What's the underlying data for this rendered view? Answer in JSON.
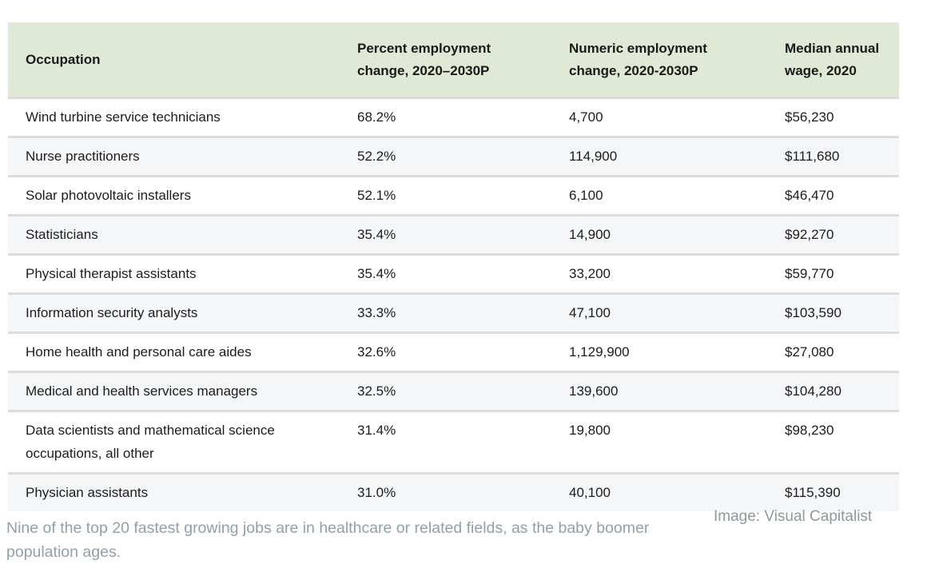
{
  "chart_data": {
    "type": "table",
    "title": "",
    "columns": [
      "Occupation",
      "Percent employment change, 2020–2030P",
      "Numeric employment change, 2020-2030P",
      "Median annual wage, 2020"
    ],
    "rows": [
      [
        "Wind turbine service technicians",
        "68.2%",
        "4,700",
        "$56,230"
      ],
      [
        "Nurse practitioners",
        "52.2%",
        "114,900",
        "$111,680"
      ],
      [
        "Solar photovoltaic installers",
        "52.1%",
        "6,100",
        "$46,470"
      ],
      [
        "Statisticians",
        "35.4%",
        "14,900",
        "$92,270"
      ],
      [
        "Physical therapist assistants",
        "35.4%",
        "33,200",
        "$59,770"
      ],
      [
        "Information security analysts",
        "33.3%",
        "47,100",
        "$103,590"
      ],
      [
        "Home health and personal care aides",
        "32.6%",
        "1,129,900",
        "$27,080"
      ],
      [
        "Medical and health services managers",
        "32.5%",
        "139,600",
        "$104,280"
      ],
      [
        "Data scientists and mathematical science occupations, all other",
        "31.4%",
        "19,800",
        "$98,230"
      ],
      [
        "Physician assistants",
        "31.0%",
        "40,100",
        "$115,390"
      ]
    ]
  },
  "table": {
    "columns": [
      "Occupation",
      "Percent employment change, 2020–2030P",
      "Numeric employment change, 2020-2030P",
      "Median annual wage, 2020"
    ]
  },
  "caption": "Nine of the top 20 fastest growing jobs are in healthcare or related fields, as the baby boomer population ages.",
  "credit": "Image: Visual Capitalist",
  "colors": {
    "header_bg": "#dfe9d5",
    "alt_row_bg": "#f5f6f8",
    "divider": "#dcdcdc",
    "body_text": "#1c1c1c",
    "caption_text": "#8ea1ad",
    "credit_text": "#90989d"
  }
}
